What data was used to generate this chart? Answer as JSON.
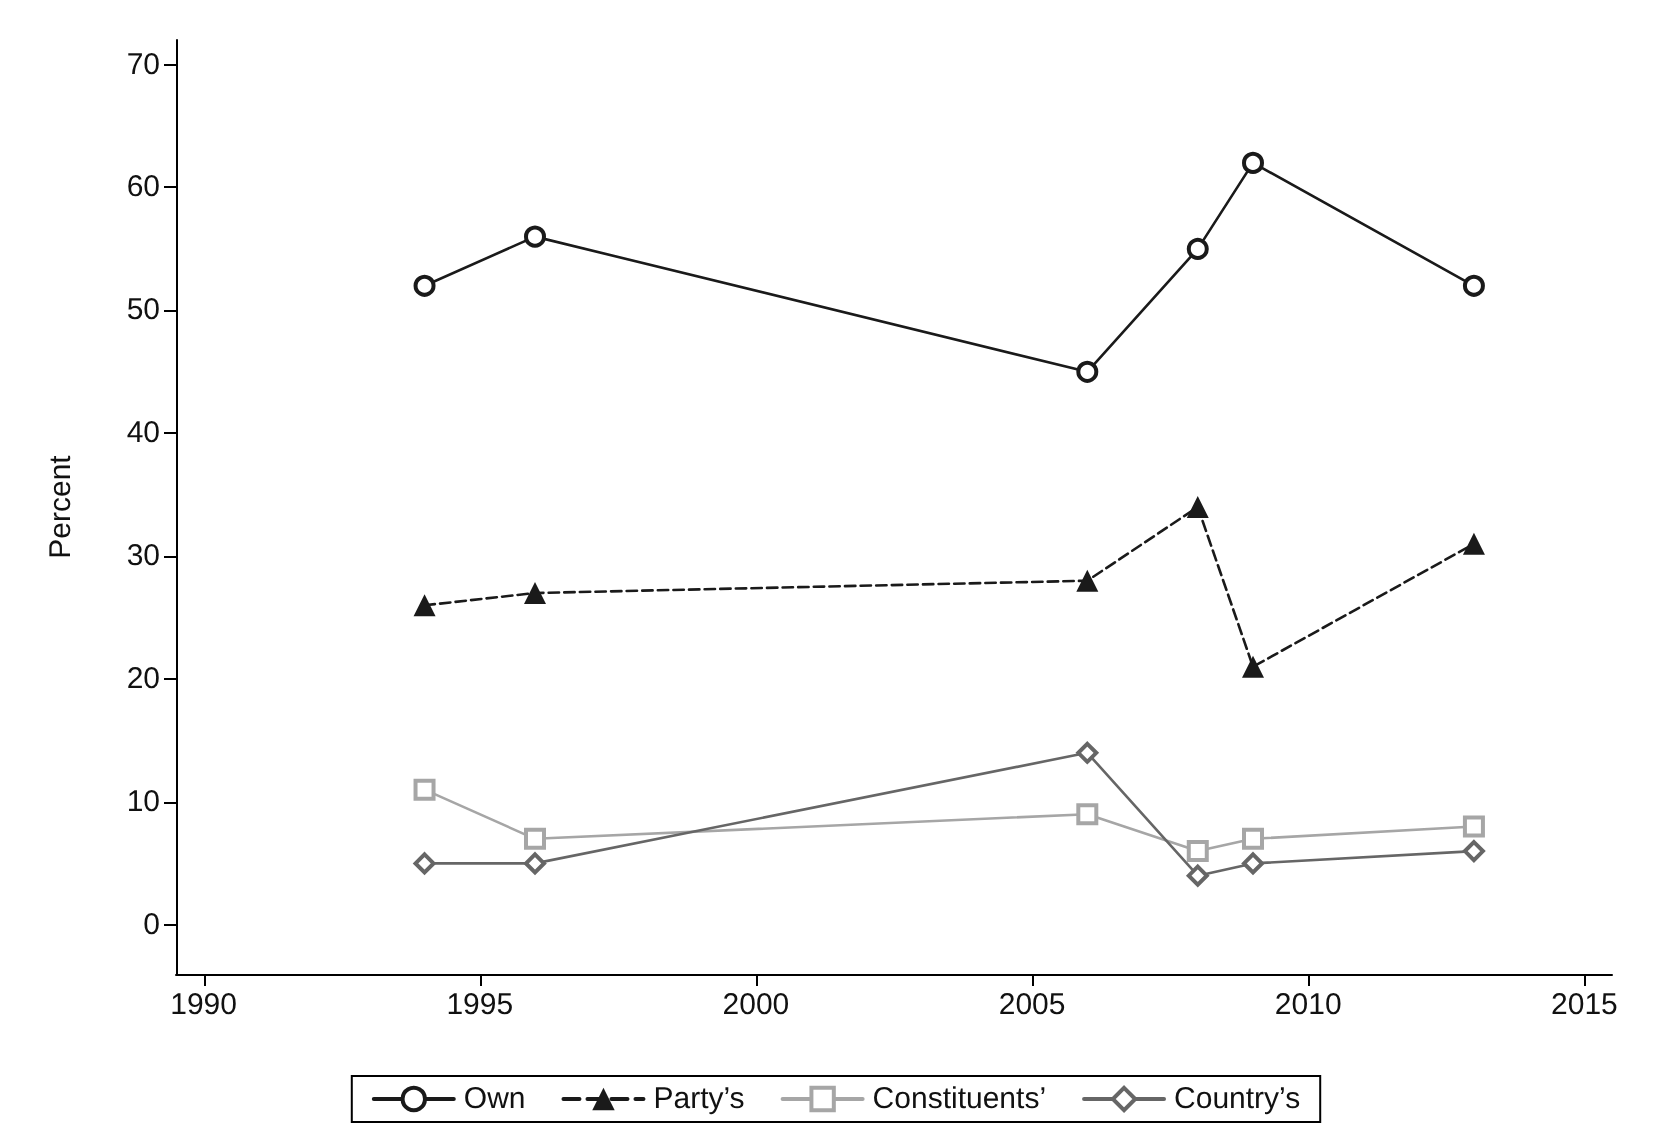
{
  "chart_data": {
    "type": "line",
    "ylabel": "Percent",
    "x": [
      1994,
      1996,
      2006,
      2008,
      2009,
      2013
    ],
    "series": [
      {
        "name": "Own",
        "color": "#1a1a1a",
        "values": [
          52,
          56,
          45,
          55,
          62,
          52
        ],
        "marker": "circle",
        "line_style": "solid"
      },
      {
        "name": "Party’s",
        "color": "#1a1a1a",
        "values": [
          26,
          27,
          28,
          34,
          21,
          31
        ],
        "marker": "triangle",
        "line_style": "dashed"
      },
      {
        "name": "Constituents’",
        "color": "#a6a6a6",
        "values": [
          11,
          7,
          9,
          6,
          7,
          8
        ],
        "marker": "square",
        "line_style": "solid"
      },
      {
        "name": "Country’s",
        "color": "#666666",
        "values": [
          5,
          5,
          14,
          4,
          5,
          6
        ],
        "marker": "diamond",
        "line_style": "solid"
      }
    ],
    "xlim": [
      1989.5,
      2015.5
    ],
    "xticks": [
      1990,
      1995,
      2000,
      2005,
      2010,
      2015
    ],
    "ylim": [
      -4,
      72
    ],
    "yticks": [
      0,
      10,
      20,
      30,
      40,
      50,
      60,
      70
    ],
    "grid": false,
    "legend": "bottom"
  }
}
